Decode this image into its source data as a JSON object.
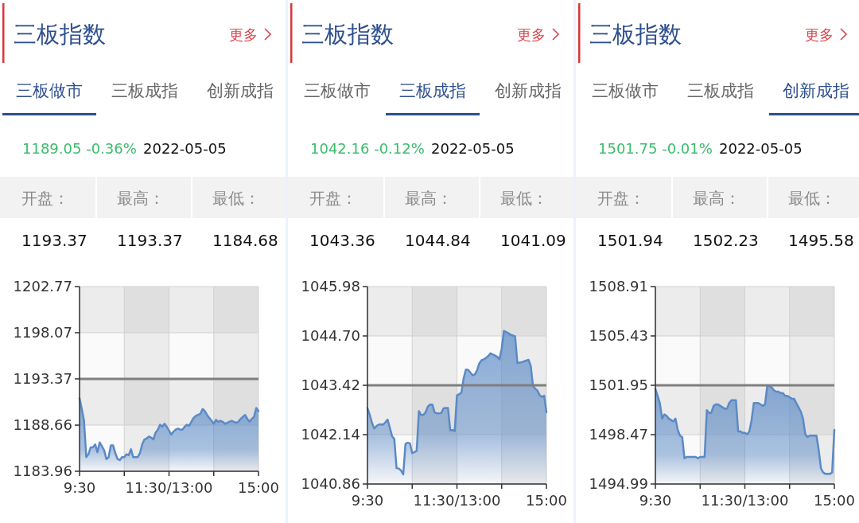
{
  "chart_data": [
    {
      "type": "area",
      "title": "三板指数",
      "annotations": [
        "更多",
        "三板做市",
        "三板成指",
        "创新成指",
        "1189.05 -0.36%",
        "2022-05-05",
        "开盘：",
        "最高：",
        "最低：",
        "1193.37",
        "1193.37",
        "1184.68"
      ],
      "categories": [
        "9:30",
        null,
        null,
        null,
        null,
        null,
        null,
        null,
        null,
        null,
        null,
        null,
        null,
        null,
        null,
        null,
        null,
        null,
        null,
        null,
        null,
        null,
        null,
        null,
        null,
        null,
        null,
        null,
        null,
        null,
        null,
        null,
        null,
        null,
        null,
        null,
        null,
        null,
        null,
        null,
        "11:30/13:00",
        null,
        null,
        null,
        null,
        null,
        null,
        null,
        null,
        null,
        null,
        null,
        null,
        null,
        null,
        null,
        null,
        null,
        null,
        null,
        null,
        null,
        null,
        null,
        null,
        null,
        null,
        null,
        null,
        null,
        null,
        null,
        null,
        null,
        null,
        null,
        null,
        null,
        null,
        null,
        "15:00"
      ],
      "values": [
        1191.4,
        1190.3,
        1189.1,
        1185.4,
        1185.7,
        1186.4,
        1186.4,
        1186.7,
        1185.9,
        1186.9,
        1186.5,
        1186.1,
        1185.2,
        1185.4,
        1186.6,
        1186.6,
        1185.8,
        1185.2,
        1185.1,
        1185.4,
        1185.4,
        1185.7,
        1185.6,
        1186.2,
        1185.4,
        1185.4,
        1185.4,
        1185.8,
        1186.7,
        1187.2,
        1187.3,
        1187.5,
        1187.4,
        1187.2,
        1187.9,
        1188.2,
        1188.7,
        1188.5,
        1188.8,
        1188.5,
        1188.1,
        1187.7,
        1188.0,
        1188.2,
        1188.3,
        1188.2,
        1188.2,
        1188.5,
        1188.7,
        1188.6,
        1189.0,
        1189.4,
        1189.6,
        1189.7,
        1189.8,
        1190.3,
        1190.1,
        1189.7,
        1189.4,
        1189.1,
        1188.8,
        1189.2,
        1189.0,
        1189.1,
        1189.0,
        1188.8,
        1188.9,
        1189.0,
        1189.1,
        1189.0,
        1188.9,
        1189.0,
        1189.3,
        1189.5,
        1189.7,
        1189.3,
        1189.0,
        1189.3,
        1189.5,
        1190.4,
        1190.1
      ],
      "color": "#5b8ac6",
      "ylim": [
        1183.96,
        1202.77
      ],
      "yticks": [
        1183.96,
        1188.66,
        1193.37,
        1198.07,
        1202.77
      ],
      "ref_lines": [
        {
          "axis": "y",
          "value": 1193.37,
          "color": "#7f7f7f"
        }
      ],
      "grid": true
    },
    {
      "type": "area",
      "title": "三板指数",
      "annotations": [
        "更多",
        "三板做市",
        "三板成指",
        "创新成指",
        "1042.16 -0.12%",
        "2022-05-05",
        "开盘：",
        "最高：",
        "最低：",
        "1043.36",
        "1044.84",
        "1041.09"
      ],
      "categories": [
        "9:30",
        null,
        null,
        null,
        null,
        null,
        null,
        null,
        null,
        null,
        null,
        null,
        null,
        null,
        null,
        null,
        null,
        null,
        null,
        null,
        null,
        null,
        null,
        null,
        null,
        null,
        null,
        null,
        null,
        null,
        null,
        null,
        null,
        null,
        null,
        null,
        null,
        null,
        null,
        null,
        "11:30/13:00",
        null,
        null,
        null,
        null,
        null,
        null,
        null,
        null,
        null,
        null,
        null,
        null,
        null,
        null,
        null,
        null,
        null,
        null,
        null,
        null,
        null,
        null,
        null,
        null,
        null,
        null,
        null,
        null,
        null,
        null,
        null,
        null,
        null,
        null,
        null,
        null,
        null,
        null,
        null,
        "15:00"
      ],
      "values": [
        1042.83,
        1042.66,
        1042.45,
        1042.3,
        1042.36,
        1042.4,
        1042.41,
        1042.4,
        1042.46,
        1042.53,
        1042.32,
        1042.1,
        1042.03,
        1041.27,
        1041.26,
        1041.21,
        1041.11,
        1041.9,
        1041.93,
        1041.91,
        1041.66,
        1041.69,
        1041.72,
        1042.75,
        1042.65,
        1042.65,
        1042.72,
        1042.87,
        1042.92,
        1042.92,
        1042.72,
        1042.69,
        1042.69,
        1042.7,
        1042.82,
        1042.83,
        1042.83,
        1042.25,
        1042.26,
        1042.23,
        1043.16,
        1043.19,
        1043.23,
        1043.6,
        1043.83,
        1043.82,
        1043.75,
        1043.68,
        1043.7,
        1043.81,
        1043.99,
        1044.07,
        1044.09,
        1044.13,
        1044.18,
        1044.25,
        1044.22,
        1044.19,
        1044.16,
        1044.09,
        1044.37,
        1044.83,
        1044.8,
        1044.77,
        1044.73,
        1044.71,
        1044.69,
        1044.0,
        1044.01,
        1044.02,
        1044.04,
        1044.06,
        1044.08,
        1043.92,
        1043.4,
        1043.33,
        1043.28,
        1043.16,
        1043.12,
        1043.15,
        1042.72
      ],
      "color": "#5b8ac6",
      "ylim": [
        1040.86,
        1045.98
      ],
      "yticks": [
        1040.86,
        1042.14,
        1043.42,
        {
          "value": 1044.7,
          "label": "1044.70"
        },
        1045.98
      ],
      "ref_lines": [
        {
          "axis": "y",
          "value": 1043.42,
          "color": "#7f7f7f"
        }
      ],
      "grid": true
    },
    {
      "type": "area",
      "title": "三板指数",
      "annotations": [
        "更多",
        "三板做市",
        "三板成指",
        "创新成指",
        "1501.75 -0.01%",
        "2022-05-05",
        "开盘：",
        "最高：",
        "最低：",
        "1501.94",
        "1502.23",
        "1495.58"
      ],
      "categories": [
        "9:30",
        null,
        null,
        null,
        null,
        null,
        null,
        null,
        null,
        null,
        null,
        null,
        null,
        null,
        null,
        null,
        null,
        null,
        null,
        null,
        null,
        null,
        null,
        null,
        null,
        null,
        null,
        null,
        null,
        null,
        null,
        null,
        null,
        null,
        null,
        null,
        null,
        null,
        null,
        null,
        "11:30/13:00",
        null,
        null,
        null,
        null,
        null,
        null,
        null,
        null,
        null,
        null,
        null,
        null,
        null,
        null,
        null,
        null,
        null,
        null,
        null,
        null,
        null,
        null,
        null,
        null,
        null,
        null,
        null,
        null,
        null,
        null,
        null,
        null,
        null,
        null,
        null,
        null,
        null,
        null,
        null,
        "15:00"
      ],
      "values": [
        1501.7,
        1501.2,
        1500.7,
        1499.6,
        1499.9,
        1499.8,
        1499.6,
        1499.5,
        1499.4,
        1499.6,
        1498.8,
        1498.4,
        1498.3,
        1496.8,
        1496.9,
        1496.9,
        1496.9,
        1496.9,
        1496.9,
        1496.8,
        1496.9,
        1496.9,
        1496.9,
        1500.2,
        1500.0,
        1500.0,
        1500.5,
        1500.6,
        1500.6,
        1500.5,
        1500.4,
        1500.3,
        1500.3,
        1500.7,
        1500.9,
        1500.9,
        1500.9,
        1498.7,
        1498.7,
        1498.6,
        1498.6,
        1498.5,
        1498.7,
        1499.5,
        1500.7,
        1500.7,
        1500.7,
        1500.6,
        1500.5,
        1500.6,
        1501.9,
        1501.9,
        1501.8,
        1501.6,
        1501.5,
        1501.5,
        1501.4,
        1501.4,
        1501.2,
        1501.2,
        1501.1,
        1501.0,
        1501.0,
        1500.7,
        1500.4,
        1500.1,
        1499.6,
        1498.5,
        1498.3,
        1498.4,
        1498.4,
        1498.4,
        1498.4,
        1497.4,
        1496.1,
        1495.8,
        1495.7,
        1495.7,
        1495.7,
        1495.8,
        1498.8
      ],
      "color": "#5b8ac6",
      "ylim": [
        1494.99,
        1508.91
      ],
      "yticks": [
        1494.99,
        1498.47,
        1501.95,
        1505.43,
        1508.91
      ],
      "ref_lines": [
        {
          "axis": "y",
          "value": 1501.95,
          "color": "#7f7f7f"
        }
      ],
      "grid": true
    }
  ]
}
